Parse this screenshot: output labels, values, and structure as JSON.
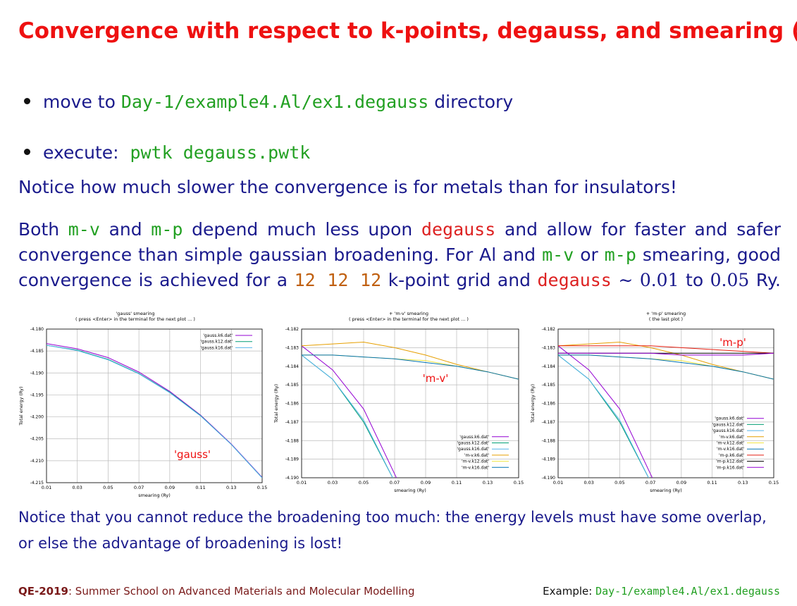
{
  "title": "Convergence with respect to k-points, degauss, and smearing (II)",
  "bullets": {
    "move_prefix": "move to",
    "move_path": "Day-1/example4.Al/ex1.degauss",
    "move_suffix": "directory",
    "exec_prefix": "execute:",
    "exec_cmd": "pwtk degauss.pwtk"
  },
  "notice1": "Notice how much slower the convergence is for metals than for insulators!",
  "para": {
    "t1": "Both",
    "mv": "m-v",
    "t2": "and",
    "mp": "m-p",
    "t3": "depend much less upon",
    "degauss": "degauss",
    "t4": "and allow for faster and safer",
    "t5": "convergence than simple gaussian broadening. For Al and",
    "t6": "or",
    "t7": "smearing, good",
    "t8": "convergence is achieved for a",
    "grid": "12 12 12",
    "t9": "k-point grid and",
    "t10": "∼",
    "v1": "0.01",
    "t11": "to",
    "v2": "0.05",
    "t12": "Ry."
  },
  "notice2": "Notice that you cannot reduce the broadening too much: the energy levels must have some overlap, or else the advantage of broadening is lost!",
  "footer": {
    "left_bold": "QE-2019",
    "left_rest": ": Summer School on Advanced Materials and Molecular Modelling",
    "right_label": "Example:",
    "right_path": "Day-1/example4.Al/ex1.degauss"
  },
  "colors": {
    "title": "#ee1111",
    "text": "#1a1a8c",
    "code_green": "#22a022",
    "code_red": "#dd2222",
    "grid_orange": "#c06010"
  },
  "chart_data": [
    {
      "type": "line",
      "title": "'gauss' smearing",
      "subtitle": "( press <Enter> in the terminal for the next plot ... )",
      "xlabel": "smearing (Ry)",
      "ylabel": "Total energy (Ry)",
      "xlim": [
        0.01,
        0.15
      ],
      "ylim": [
        -4.215,
        -4.18
      ],
      "xticks": [
        "0.01",
        "0.03",
        "0.05",
        "0.07",
        "0.09",
        "0.11",
        "0.13",
        "0.15"
      ],
      "yticks": [
        "-4.180",
        "-4.185",
        "-4.190",
        "-4.195",
        "-4.200",
        "-4.205",
        "-4.210",
        "-4.215"
      ],
      "grid": true,
      "legend": "top-right",
      "annotation": "'gauss'",
      "x": [
        0.01,
        0.03,
        0.05,
        0.07,
        0.09,
        0.11,
        0.13,
        0.15
      ],
      "series": [
        {
          "name": "'gauss.k6.dat'",
          "color": "#9400d3",
          "values": [
            -4.1833,
            -4.1845,
            -4.1865,
            -4.1898,
            -4.1942,
            -4.1996,
            -4.2062,
            -4.2138
          ]
        },
        {
          "name": "'gauss.k12.dat'",
          "color": "#009e73",
          "values": [
            -4.1837,
            -4.1848,
            -4.1869,
            -4.1901,
            -4.1944,
            -4.1997,
            -4.2063,
            -4.2139
          ]
        },
        {
          "name": "'gauss.k16.dat'",
          "color": "#56b4e9",
          "values": [
            -4.1837,
            -4.1849,
            -4.187,
            -4.1902,
            -4.1945,
            -4.1998,
            -4.2063,
            -4.2139
          ]
        }
      ]
    },
    {
      "type": "line",
      "title": "+ 'm-v' smearing",
      "subtitle": "( press <Enter> in the terminal for the next plot ... )",
      "xlabel": "smearing (Ry)",
      "ylabel": "Total energy (Ry)",
      "xlim": [
        0.01,
        0.15
      ],
      "ylim": [
        -4.19,
        -4.182
      ],
      "xticks": [
        "0.01",
        "0.03",
        "0.05",
        "0.07",
        "0.09",
        "0.11",
        "0.13",
        "0.15"
      ],
      "yticks": [
        "-4.182",
        "-4.183",
        "-4.184",
        "-4.185",
        "-4.186",
        "-4.187",
        "-4.188",
        "-4.189",
        "-4.190"
      ],
      "grid": true,
      "legend": "bottom-right",
      "annotation": "'m-v'",
      "x": [
        0.01,
        0.03,
        0.05,
        0.07,
        0.09,
        0.11,
        0.13,
        0.15
      ],
      "series": [
        {
          "name": "'gauss.k6.dat'",
          "color": "#9400d3",
          "values": [
            -4.1829,
            -4.1842,
            -4.1863,
            -4.1898,
            null,
            null,
            null,
            null
          ]
        },
        {
          "name": "'gauss.k12.dat'",
          "color": "#009e73",
          "values": [
            -4.1834,
            -4.1847,
            -4.187,
            -4.1902,
            null,
            null,
            null,
            null
          ]
        },
        {
          "name": "'gauss.k16.dat'",
          "color": "#56b4e9",
          "values": [
            -4.1834,
            -4.1847,
            -4.1869,
            -4.1902,
            null,
            null,
            null,
            null
          ]
        },
        {
          "name": "'m-v.k6.dat'",
          "color": "#e69f00",
          "values": [
            -4.1829,
            -4.1828,
            -4.1827,
            -4.183,
            -4.1834,
            -4.1839,
            -4.1843,
            -4.1847
          ]
        },
        {
          "name": "'m-v.k12.dat'",
          "color": "#f0e442",
          "values": [
            -4.1834,
            -4.1834,
            -4.1835,
            -4.1836,
            -4.1837,
            -4.184,
            -4.1843,
            -4.1847
          ]
        },
        {
          "name": "'m-v.k16.dat'",
          "color": "#0072b2",
          "values": [
            -4.1834,
            -4.1834,
            -4.1835,
            -4.1836,
            -4.1838,
            -4.184,
            -4.1843,
            -4.1847
          ]
        }
      ]
    },
    {
      "type": "line",
      "title": "+ 'm-p' smearing",
      "subtitle": "( the last plot )",
      "xlabel": "smearing (Ry)",
      "ylabel": "Total energy (Ry)",
      "xlim": [
        0.01,
        0.15
      ],
      "ylim": [
        -4.19,
        -4.182
      ],
      "xticks": [
        "0.01",
        "0.03",
        "0.05",
        "0.07",
        "0.09",
        "0.11",
        "0.13",
        "0.15"
      ],
      "yticks": [
        "-4.182",
        "-4.183",
        "-4.184",
        "-4.185",
        "-4.186",
        "-4.187",
        "-4.188",
        "-4.189",
        "-4.190"
      ],
      "grid": true,
      "legend": "bottom-right",
      "annotation": "'m-p'",
      "x": [
        0.01,
        0.03,
        0.05,
        0.07,
        0.09,
        0.11,
        0.13,
        0.15
      ],
      "series": [
        {
          "name": "'gauss.k6.dat'",
          "color": "#9400d3",
          "values": [
            -4.1829,
            -4.1842,
            -4.1863,
            -4.1898,
            null,
            null,
            null,
            null
          ]
        },
        {
          "name": "'gauss.k12.dat'",
          "color": "#009e73",
          "values": [
            -4.1834,
            -4.1847,
            -4.187,
            -4.1902,
            null,
            null,
            null,
            null
          ]
        },
        {
          "name": "'gauss.k16.dat'",
          "color": "#56b4e9",
          "values": [
            -4.1834,
            -4.1847,
            -4.1869,
            -4.1902,
            null,
            null,
            null,
            null
          ]
        },
        {
          "name": "'m-v.k6.dat'",
          "color": "#e69f00",
          "values": [
            -4.1829,
            -4.1828,
            -4.1827,
            -4.183,
            -4.1834,
            -4.1839,
            -4.1843,
            -4.1847
          ]
        },
        {
          "name": "'m-v.k12.dat'",
          "color": "#f0e442",
          "values": [
            -4.1834,
            -4.1834,
            -4.1835,
            -4.1836,
            -4.1837,
            -4.184,
            -4.1843,
            -4.1847
          ]
        },
        {
          "name": "'m-v.k16.dat'",
          "color": "#0072b2",
          "values": [
            -4.1834,
            -4.1834,
            -4.1835,
            -4.1836,
            -4.1838,
            -4.184,
            -4.1843,
            -4.1847
          ]
        },
        {
          "name": "'m-p.k6.dat'",
          "color": "#e51e10",
          "values": [
            -4.1829,
            -4.1829,
            -4.1829,
            -4.1829,
            -4.183,
            -4.1831,
            -4.1832,
            -4.1833
          ]
        },
        {
          "name": "'m-p.k12.dat'",
          "color": "#000000",
          "values": [
            -4.1833,
            -4.1833,
            -4.1833,
            -4.1833,
            -4.1833,
            -4.1833,
            -4.1833,
            -4.1833
          ]
        },
        {
          "name": "'m-p.k16.dat'",
          "color": "#9400d3",
          "values": [
            -4.1833,
            -4.1833,
            -4.1833,
            -4.1833,
            -4.1834,
            -4.1834,
            -4.1834,
            -4.1833
          ]
        }
      ]
    }
  ]
}
